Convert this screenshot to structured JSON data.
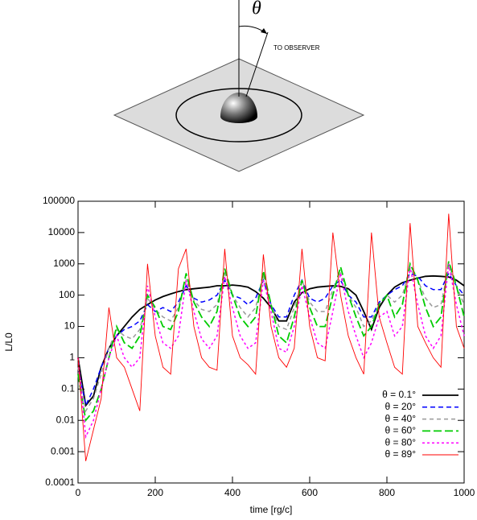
{
  "diagram": {
    "angle_label": "θ",
    "arrow_label": "TO OBSERVER"
  },
  "chart_data": {
    "type": "line",
    "xlabel": "time [rg/c]",
    "ylabel": "L/L0",
    "xlim": [
      0,
      1000
    ],
    "xticks": [
      0,
      200,
      400,
      600,
      800,
      1000
    ],
    "ylim": [
      0.0001,
      100000
    ],
    "yticks": [
      0.0001,
      0.001,
      0.01,
      0.1,
      1,
      10,
      100,
      1000,
      10000,
      100000
    ],
    "log_y": true,
    "legend": "lower right",
    "x": [
      0,
      20,
      40,
      60,
      80,
      100,
      120,
      140,
      160,
      180,
      200,
      220,
      240,
      260,
      280,
      300,
      320,
      340,
      360,
      380,
      400,
      420,
      440,
      460,
      480,
      500,
      520,
      540,
      560,
      580,
      600,
      620,
      640,
      660,
      680,
      700,
      720,
      740,
      760,
      780,
      800,
      820,
      840,
      860,
      880,
      900,
      920,
      940,
      960,
      980,
      1000
    ],
    "series": [
      {
        "name": "θ = 0.1°",
        "color": "#000000",
        "values": [
          1,
          0.03,
          0.06,
          0.5,
          2,
          5,
          10,
          20,
          35,
          50,
          70,
          90,
          110,
          130,
          150,
          160,
          170,
          180,
          200,
          200,
          210,
          200,
          180,
          130,
          80,
          40,
          15,
          15,
          60,
          120,
          160,
          180,
          190,
          200,
          190,
          160,
          100,
          30,
          8,
          40,
          100,
          180,
          250,
          300,
          350,
          400,
          410,
          400,
          380,
          300,
          200
        ]
      },
      {
        "name": "θ = 20°",
        "color": "#0000ff",
        "values": [
          0.5,
          0.03,
          0.1,
          0.5,
          2,
          5,
          8,
          10,
          15,
          50,
          30,
          40,
          30,
          60,
          200,
          80,
          60,
          70,
          100,
          300,
          100,
          80,
          50,
          80,
          300,
          50,
          20,
          20,
          100,
          300,
          80,
          60,
          80,
          200,
          300,
          100,
          60,
          20,
          20,
          60,
          100,
          150,
          200,
          500,
          400,
          200,
          150,
          150,
          500,
          200,
          100
        ]
      },
      {
        "name": "θ = 40°",
        "color": "#999999",
        "values": [
          0.5,
          0.02,
          0.05,
          0.3,
          2,
          8,
          5,
          4,
          8,
          80,
          35,
          20,
          15,
          40,
          300,
          70,
          35,
          30,
          50,
          500,
          100,
          40,
          20,
          40,
          400,
          50,
          10,
          8,
          40,
          300,
          60,
          30,
          30,
          150,
          500,
          100,
          40,
          10,
          15,
          50,
          100,
          60,
          100,
          700,
          300,
          80,
          40,
          50,
          800,
          200,
          50
        ]
      },
      {
        "name": "θ = 60°",
        "color": "#00cc00",
        "values": [
          0.3,
          0.01,
          0.02,
          0.1,
          1,
          10,
          3,
          2,
          5,
          100,
          40,
          10,
          8,
          30,
          500,
          60,
          20,
          10,
          30,
          700,
          100,
          20,
          10,
          20,
          600,
          50,
          5,
          3,
          20,
          300,
          40,
          10,
          10,
          100,
          800,
          100,
          20,
          5,
          10,
          50,
          100,
          20,
          50,
          1000,
          300,
          40,
          10,
          20,
          1200,
          200,
          20
        ]
      },
      {
        "name": "θ = 80°",
        "color": "#ff00ff",
        "values": [
          1,
          0.003,
          0.01,
          0.1,
          1,
          5,
          1,
          0.5,
          1,
          200,
          20,
          3,
          2,
          5,
          300,
          30,
          4,
          2,
          5,
          400,
          40,
          5,
          2,
          3,
          300,
          30,
          2,
          1.5,
          10,
          200,
          20,
          3,
          2,
          30,
          500,
          30,
          5,
          1,
          3,
          20,
          30,
          5,
          10,
          800,
          50,
          5,
          2,
          5,
          1000,
          50,
          5
        ]
      },
      {
        "name": "θ = 89°",
        "color": "#ff0000",
        "values": [
          1,
          0.0005,
          0.005,
          0.05,
          40,
          1,
          0.5,
          0.1,
          0.02,
          1000,
          5,
          0.5,
          0.3,
          700,
          3000,
          10,
          1,
          0.5,
          0.4,
          3000,
          5,
          1,
          0.6,
          0.3,
          2000,
          10,
          1,
          0.5,
          2,
          3000,
          10,
          1,
          0.8,
          10000,
          100,
          5,
          1,
          0.3,
          10000,
          20,
          3,
          0.5,
          0.3,
          20000,
          10,
          3,
          1,
          0.5,
          40000,
          10,
          2
        ]
      }
    ]
  }
}
